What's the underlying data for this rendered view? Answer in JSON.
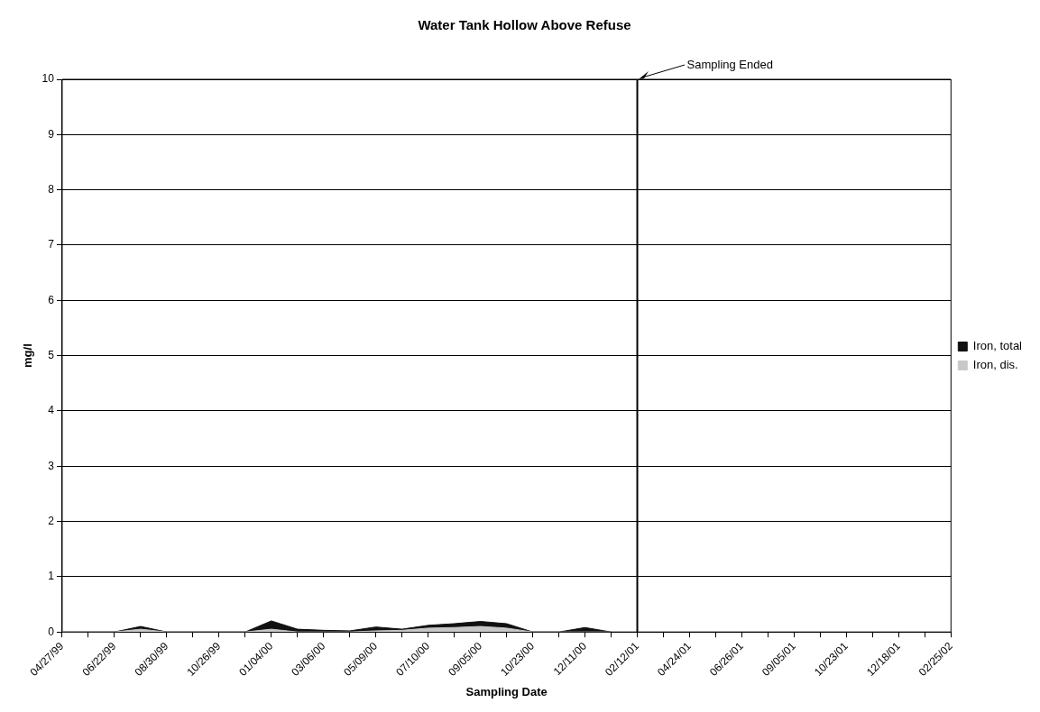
{
  "chart_data": {
    "type": "area",
    "title": "Water Tank Hollow Above Refuse",
    "xlabel": "Sampling Date",
    "ylabel": "mg/l",
    "categories": [
      "04/27/99",
      null,
      "06/22/99",
      null,
      "08/30/99",
      null,
      "10/26/99",
      null,
      "01/04/00",
      null,
      "03/06/00",
      null,
      "05/09/00",
      null,
      "07/10/00",
      null,
      "09/05/00",
      null,
      "10/23/00",
      null,
      "12/11/00",
      null,
      "02/12/01",
      null,
      "04/24/01",
      null,
      "06/26/01",
      null,
      "09/05/01",
      null,
      "10/23/01",
      null,
      "12/18/01",
      null,
      "02/25/02"
    ],
    "series": [
      {
        "name": "Iron, total",
        "color": "#111111",
        "values": [
          0,
          0,
          0,
          0.1,
          0,
          0,
          0,
          0,
          0.2,
          0.05,
          0.03,
          0.02,
          0.09,
          0.05,
          0.12,
          0.15,
          0.19,
          0.15,
          0,
          0,
          0.08,
          0,
          null,
          null,
          null,
          null,
          null,
          null,
          null,
          null,
          null,
          null,
          null,
          null,
          null
        ]
      },
      {
        "name": "Iron, dis.",
        "color": "#c8c8c8",
        "values": [
          0,
          0,
          0,
          0.05,
          0,
          0,
          0,
          0,
          0.05,
          0,
          0,
          0,
          0.02,
          0.03,
          0.07,
          0.08,
          0.1,
          0.07,
          0,
          0,
          0,
          0,
          null,
          null,
          null,
          null,
          null,
          null,
          null,
          null,
          null,
          null,
          null,
          null,
          null
        ]
      }
    ],
    "ylim": [
      0,
      10
    ],
    "yticks": [
      0,
      1,
      2,
      3,
      4,
      5,
      6,
      7,
      8,
      9,
      10
    ],
    "grid": "y",
    "legend": "right",
    "ref_lines": [
      {
        "axis": "x",
        "value": "02/12/01",
        "label": "Sampling Ended",
        "color": "#000000"
      }
    ]
  }
}
